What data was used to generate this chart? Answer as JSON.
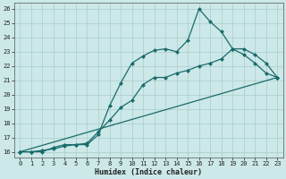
{
  "xlabel": "Humidex (Indice chaleur)",
  "bg_color": "#cce8e8",
  "grid_color": "#aacccc",
  "line_color": "#1a6b6b",
  "xlim": [
    -0.5,
    23.5
  ],
  "ylim": [
    15.6,
    26.4
  ],
  "xticks": [
    0,
    1,
    2,
    3,
    4,
    5,
    6,
    7,
    8,
    9,
    10,
    11,
    12,
    13,
    14,
    15,
    16,
    17,
    18,
    19,
    20,
    21,
    22,
    23
  ],
  "yticks": [
    16,
    17,
    18,
    19,
    20,
    21,
    22,
    23,
    24,
    25,
    26
  ],
  "line1_x": [
    0,
    1,
    2,
    3,
    4,
    5,
    6,
    7,
    8,
    9,
    10,
    11,
    12,
    13,
    14,
    15,
    16,
    17,
    18,
    19,
    20,
    21,
    22,
    23
  ],
  "line1_y": [
    16,
    16,
    16,
    16.3,
    16.5,
    16.5,
    16.5,
    17.2,
    19.2,
    20.8,
    22.2,
    22.7,
    23.1,
    23.2,
    23.0,
    23.8,
    26.0,
    25.1,
    24.4,
    23.2,
    22.8,
    22.2,
    21.5,
    21.2
  ],
  "line2_x": [
    0,
    1,
    2,
    3,
    4,
    5,
    6,
    7,
    8,
    9,
    10,
    11,
    12,
    13,
    14,
    15,
    16,
    17,
    18,
    19,
    20,
    21,
    22,
    23
  ],
  "line2_y": [
    16,
    16,
    16.1,
    16.2,
    16.4,
    16.5,
    16.6,
    17.4,
    18.2,
    19.1,
    19.6,
    20.7,
    21.2,
    21.2,
    21.5,
    21.7,
    22.0,
    22.2,
    22.5,
    23.2,
    23.2,
    22.8,
    22.2,
    21.2
  ],
  "line3_x": [
    0,
    23
  ],
  "line3_y": [
    16,
    21.2
  ],
  "marker_size": 2.5,
  "linewidth": 0.9,
  "tick_fontsize": 5.0,
  "xlabel_fontsize": 6.0
}
